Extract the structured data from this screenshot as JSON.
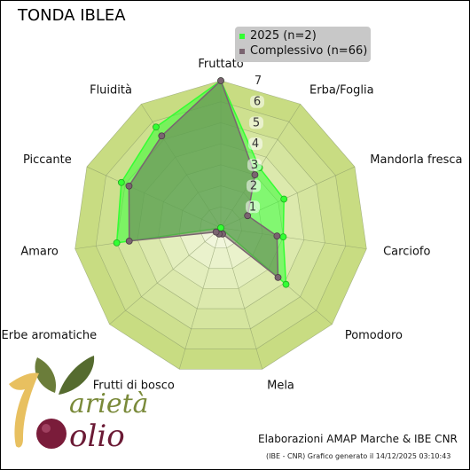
{
  "page_title": "TONDA IBLEA",
  "chart_data": {
    "type": "radar",
    "title": "TONDA IBLEA",
    "axes": [
      "Fruttato",
      "Erba/Foglia",
      "Mandorla fresca",
      "Carciofo",
      "Pomodoro",
      "Mela",
      "Frutti di bosco",
      "Erbe aromatiche",
      "Amaro",
      "Piccante",
      "Fluidità"
    ],
    "rlim": [
      0,
      7
    ],
    "ticks": [
      1,
      2,
      3,
      4,
      5,
      6,
      7
    ],
    "series": [
      {
        "name": "2025 (n=2)",
        "color": "#33ff33",
        "values": [
          7.0,
          3.4,
          3.3,
          3.0,
          4.1,
          0.0,
          0.0,
          0.0,
          5.0,
          5.2,
          5.7
        ]
      },
      {
        "name": "Complessivo (n=66)",
        "color": "#7a6470",
        "values": [
          7.0,
          3.0,
          1.4,
          2.7,
          3.6,
          0.3,
          0.3,
          0.3,
          4.4,
          4.8,
          5.2
        ]
      }
    ],
    "legend_position": "top-right"
  },
  "legend": [
    {
      "label": "2025 (n=2)",
      "color": "#33ff33"
    },
    {
      "label": "Complessivo (n=66)",
      "color": "#7a6470"
    }
  ],
  "footer": {
    "main": "Elaborazioni AMAP Marche & IBE CNR",
    "sub": "(IBE - CNR) Grafico generato il 14/12/2025 03:10:43"
  },
  "logo": {
    "line1": "arietà",
    "line2": "olio"
  }
}
